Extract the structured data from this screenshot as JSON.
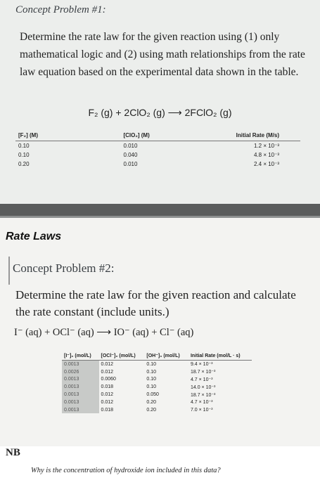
{
  "problem1": {
    "title": "Concept Problem #1:",
    "text": "Determine the rate law for the given reaction using (1) only mathematical logic and (2) using math relationships from the rate law equation based on the experimental data shown in the table.",
    "equation": "F₂ (g) + 2ClO₂ (g) ⟶ 2FClO₂ (g)",
    "table": {
      "header": [
        "[F₂] (M)",
        "[ClO₂] (M)",
        "Initial Rate (M/s)"
      ],
      "rows": [
        [
          "0.10",
          "0.010",
          "1.2 × 10⁻³"
        ],
        [
          "0.10",
          "0.040",
          "4.8 × 10⁻³"
        ],
        [
          "0.20",
          "0.010",
          "2.4 × 10⁻³"
        ]
      ]
    }
  },
  "section": "Rate Laws",
  "problem2": {
    "title": "Concept Problem #2:",
    "text": "Determine the rate law for the given reaction and calculate the rate constant (include units.)",
    "equation": "I⁻ (aq) + OCl⁻ (aq) ⟶ IO⁻ (aq) + Cl⁻ (aq)",
    "table": {
      "header": [
        "[I⁻]₀ (mol/L)",
        "[OCl⁻]₀ (mol/L)",
        "[OH⁻]₀ (mol/L)",
        "Initial Rate (mol/L · s)"
      ],
      "rows": [
        [
          "0.0013",
          "0.012",
          "0.10",
          "9.4 × 10⁻³"
        ],
        [
          "0.0026",
          "0.012",
          "0.10",
          "18.7 × 10⁻³"
        ],
        [
          "0.0013",
          "0.0060",
          "0.10",
          "4.7 × 10⁻³"
        ],
        [
          "0.0013",
          "0.018",
          "0.10",
          "14.0 × 10⁻³"
        ],
        [
          "0.0013",
          "0.012",
          "0.050",
          "18.7 × 10⁻³"
        ],
        [
          "0.0013",
          "0.012",
          "0.20",
          "4.7 × 10⁻³"
        ],
        [
          "0.0013",
          "0.018",
          "0.20",
          "7.0 × 10⁻³"
        ]
      ]
    }
  },
  "note": {
    "label": "NB",
    "text": "Why is the concentration of hydroxide ion included in this data?"
  }
}
